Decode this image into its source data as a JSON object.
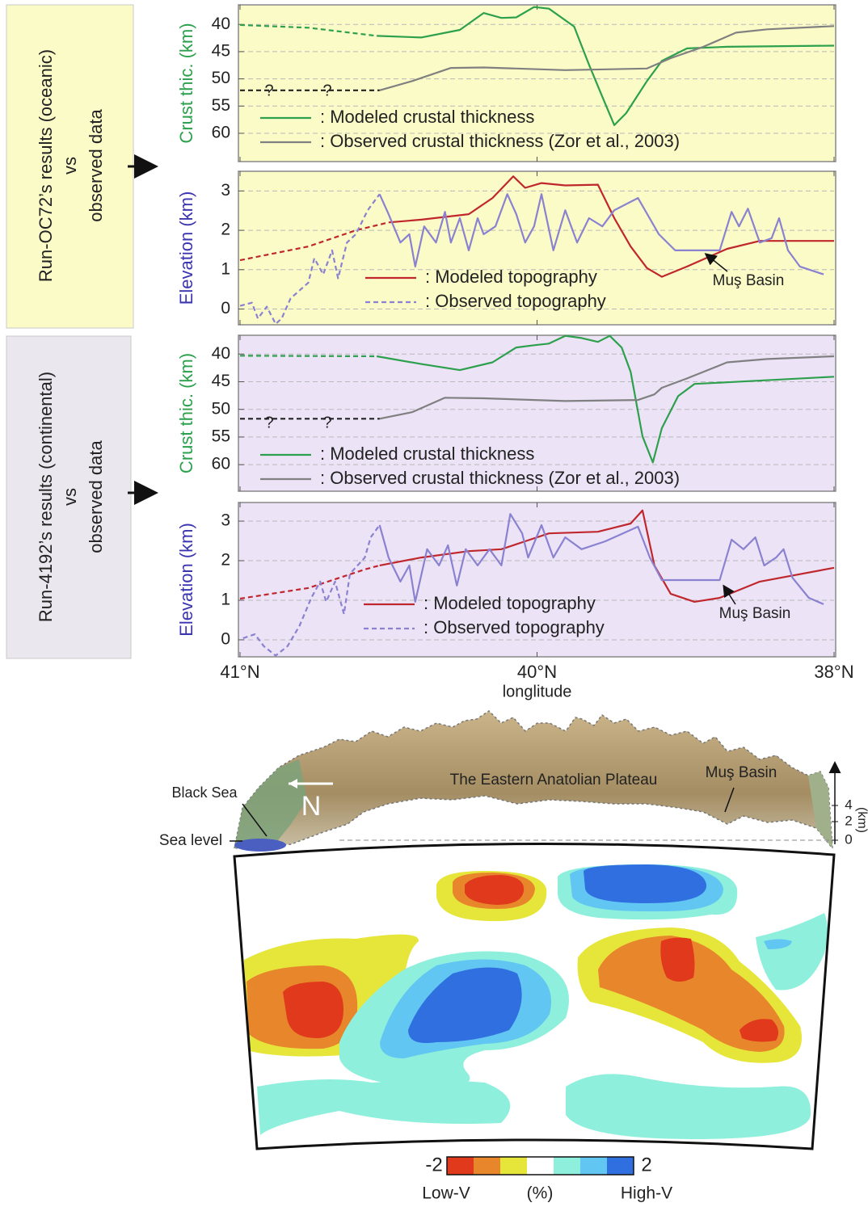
{
  "side_labels": [
    {
      "lines": [
        "Run-OC72’s results (oceanic)",
        "vs",
        "observed data"
      ]
    },
    {
      "lines": [
        "Run-4192’s results (continental)",
        "vs",
        "observed data"
      ]
    }
  ],
  "x_axis": {
    "xlim": [
      41,
      38
    ],
    "xticks": [
      {
        "value": 41,
        "label": "41°N"
      },
      {
        "value": 40,
        "label": "40°N"
      },
      {
        "value": 38,
        "label": "38°N"
      }
    ],
    "xlabel": "longlitude"
  },
  "chart_data": [
    {
      "type": "line",
      "ylabel": "Crust thic. (km)",
      "ylabel_color": "#2ca04c",
      "background": "#fbfbc8",
      "ylim": [
        65.2,
        36.4
      ],
      "yticks": [
        40,
        45,
        50,
        55,
        60
      ],
      "grid": true,
      "series": [
        {
          "name": ": Modeled crustal thickness",
          "color": "#2ca04c",
          "x": [
            40.54,
            40.39,
            40.26,
            40.18,
            40.12,
            40.07,
            40.01,
            39.92,
            39.75,
            39.65,
            39.56,
            39.48,
            39.4,
            39.26,
            39.16,
            38.99,
            38.72,
            38.0
          ],
          "values": [
            42.1,
            42.4,
            41.0,
            37.9,
            38.8,
            38.7,
            36.8,
            37.1,
            40.4,
            47.4,
            53.3,
            58.5,
            56.3,
            50.4,
            46.7,
            44.4,
            44.1,
            43.9
          ]
        },
        {
          "color": "#2ca04c",
          "dashed": true,
          "x": [
            41.0,
            40.77,
            40.54
          ],
          "values": [
            40.1,
            40.6,
            42.1
          ]
        },
        {
          "name": ": Observed crustal thickness (Zor et al., 2003)",
          "color": "#808080",
          "x": [
            40.53,
            40.42,
            40.29,
            40.18,
            39.81,
            39.26,
            39.1,
            38.88,
            38.66,
            38.45,
            38.0
          ],
          "values": [
            52.1,
            50.4,
            48.0,
            47.9,
            48.4,
            48.1,
            46.2,
            44.1,
            41.5,
            40.9,
            40.3
          ]
        },
        {
          "color": "#222222",
          "dashed": true,
          "x": [
            41.0,
            40.53
          ],
          "values": [
            52.1,
            52.1
          ]
        }
      ],
      "annotations": [
        "?",
        "?"
      ]
    },
    {
      "type": "line",
      "ylabel": "Elevation (km)",
      "ylabel_color": "#3b35b0",
      "background": "#fbfbc8",
      "ylim": [
        -0.4,
        3.5
      ],
      "yticks": [
        0,
        1,
        2,
        3
      ],
      "grid": true,
      "series": [
        {
          "name": ": Modeled topography",
          "color": "#c0272d",
          "x": [
            40.5,
            40.39,
            40.23,
            40.15,
            40.08,
            40.04,
            39.97,
            39.81,
            39.59,
            39.48,
            39.37,
            39.26,
            39.16,
            38.99,
            38.72,
            38.5,
            38.0
          ],
          "values": [
            2.2,
            2.27,
            2.41,
            2.82,
            3.37,
            3.08,
            3.2,
            3.14,
            3.16,
            2.31,
            1.59,
            1.04,
            0.82,
            1.08,
            1.53,
            1.73,
            1.73
          ]
        },
        {
          "color": "#c0272d",
          "dashed": true,
          "x": [
            41.0,
            40.77,
            40.61,
            40.5
          ],
          "values": [
            1.24,
            1.59,
            2.0,
            2.2
          ]
        },
        {
          "name": ": Observed topography",
          "color": "#8a82d0",
          "legend_dashed": true,
          "x": [
            40.53,
            40.5,
            40.46,
            40.43,
            40.41,
            40.38,
            40.34,
            40.31,
            40.29,
            40.26,
            40.23,
            40.2,
            40.18,
            40.14,
            40.1,
            40.07,
            40.04,
            40.01,
            39.97,
            39.89,
            39.81,
            39.73,
            39.65,
            39.56,
            39.48,
            39.32,
            39.18,
            39.07,
            38.99,
            38.77,
            38.69,
            38.64,
            38.58,
            38.5,
            38.42,
            38.37,
            38.31,
            38.23,
            38.07
          ],
          "values": [
            2.92,
            2.41,
            1.69,
            1.9,
            1.08,
            2.1,
            1.69,
            2.47,
            1.69,
            2.31,
            1.49,
            2.31,
            1.9,
            2.1,
            2.92,
            2.41,
            1.69,
            2.1,
            2.92,
            1.49,
            2.51,
            1.69,
            2.31,
            2.1,
            2.51,
            2.82,
            1.9,
            1.49,
            1.49,
            1.49,
            2.47,
            2.1,
            2.55,
            1.69,
            1.8,
            2.31,
            1.49,
            1.08,
            0.88
          ]
        },
        {
          "color": "#8a82d0",
          "dashed": true,
          "x": [
            41.0,
            40.96,
            40.94,
            40.91,
            40.88,
            40.86,
            40.83,
            40.77,
            40.75,
            40.72,
            40.69,
            40.67,
            40.64,
            40.61,
            40.57,
            40.54,
            40.53
          ],
          "values": [
            0.08,
            0.16,
            -0.24,
            0.06,
            -0.38,
            -0.24,
            0.27,
            0.67,
            1.29,
            0.88,
            1.49,
            0.78,
            1.69,
            1.9,
            2.51,
            2.82,
            2.92
          ]
        }
      ],
      "annotations": [
        "Muş Basin"
      ]
    },
    {
      "type": "line",
      "ylabel": "Crust thic. (km)",
      "ylabel_color": "#2ca04c",
      "background": "#ece3f7",
      "ylim": [
        64.8,
        36.6
      ],
      "yticks": [
        40,
        45,
        50,
        55,
        60
      ],
      "grid": true,
      "series": [
        {
          "name": ": Modeled crustal thickness",
          "color": "#2ca04c",
          "x": [
            40.54,
            40.39,
            40.26,
            40.15,
            40.07,
            40.01,
            39.92,
            39.81,
            39.7,
            39.59,
            39.51,
            39.43,
            39.37,
            39.29,
            39.22,
            39.16,
            39.05,
            38.94,
            38.72,
            38.0
          ],
          "values": [
            40.4,
            41.8,
            42.9,
            41.5,
            38.8,
            38.4,
            38.1,
            36.7,
            37.1,
            37.8,
            36.7,
            38.8,
            43.2,
            54.9,
            59.6,
            53.4,
            47.6,
            45.4,
            45.1,
            44.1
          ]
        },
        {
          "color": "#2ca04c",
          "dashed": true,
          "x": [
            41.0,
            40.54
          ],
          "values": [
            40.3,
            40.4
          ]
        },
        {
          "name": ": Observed crustal thickness (Zor et al., 2003)",
          "color": "#808080",
          "x": [
            40.53,
            40.42,
            40.31,
            40.18,
            39.81,
            39.32,
            39.21,
            39.16,
            38.99,
            38.72,
            38.45,
            38.0
          ],
          "values": [
            51.7,
            50.5,
            47.9,
            48.0,
            48.5,
            48.3,
            47.3,
            46.1,
            44.4,
            41.5,
            40.9,
            40.4
          ]
        },
        {
          "color": "#222222",
          "dashed": true,
          "x": [
            41.0,
            40.53
          ],
          "values": [
            51.7,
            51.7
          ]
        }
      ],
      "annotations": [
        "?",
        "?"
      ]
    },
    {
      "type": "line",
      "ylabel": "Elevation (km)",
      "ylabel_color": "#3b35b0",
      "background": "#ece3f7",
      "ylim": [
        -0.43,
        3.47
      ],
      "yticks": [
        0,
        1,
        2,
        3
      ],
      "grid": true,
      "series": [
        {
          "name": ": Modeled topography",
          "color": "#c0272d",
          "x": [
            40.53,
            40.39,
            40.23,
            40.12,
            40.04,
            39.92,
            39.59,
            39.37,
            39.29,
            39.21,
            39.1,
            38.94,
            38.77,
            38.5,
            38.0
          ],
          "values": [
            1.88,
            2.08,
            2.24,
            2.29,
            2.49,
            2.69,
            2.73,
            2.94,
            3.27,
            1.88,
            1.16,
            0.96,
            1.06,
            1.47,
            1.82
          ]
        },
        {
          "color": "#c0272d",
          "dashed": true,
          "x": [
            41.0,
            40.77,
            40.58,
            40.53
          ],
          "values": [
            1.04,
            1.31,
            1.78,
            1.88
          ]
        },
        {
          "name": ": Observed topography",
          "color": "#8a82d0",
          "legend_dashed": true,
          "x": [
            40.53,
            40.5,
            40.46,
            40.43,
            40.41,
            40.37,
            40.33,
            40.3,
            40.27,
            40.24,
            40.2,
            40.16,
            40.12,
            40.09,
            40.05,
            40.03,
            39.97,
            39.89,
            39.81,
            39.7,
            39.54,
            39.32,
            39.24,
            39.16,
            38.99,
            38.77,
            38.69,
            38.61,
            38.53,
            38.47,
            38.39,
            38.34,
            38.28,
            38.17,
            38.07
          ],
          "values": [
            2.9,
            2.08,
            1.47,
            1.88,
            0.96,
            2.29,
            1.88,
            2.39,
            1.37,
            2.29,
            1.88,
            2.29,
            1.88,
            3.18,
            2.69,
            2.08,
            2.9,
            2.08,
            2.59,
            2.29,
            2.49,
            2.86,
            2.08,
            1.51,
            1.51,
            1.51,
            2.53,
            2.29,
            2.59,
            1.88,
            2.08,
            2.29,
            1.57,
            1.06,
            0.9
          ]
        },
        {
          "color": "#8a82d0",
          "dashed": true,
          "x": [
            40.99,
            40.95,
            40.92,
            40.88,
            40.84,
            40.8,
            40.76,
            40.73,
            40.71,
            40.68,
            40.65,
            40.63,
            40.58,
            40.56,
            40.53
          ],
          "values": [
            0.04,
            0.14,
            -0.16,
            -0.4,
            -0.16,
            0.35,
            1.06,
            1.47,
            0.96,
            1.47,
            0.65,
            1.67,
            2.08,
            2.59,
            2.9
          ]
        }
      ],
      "annotations": [
        "Muş Basin"
      ]
    }
  ],
  "section": {
    "labels": {
      "plateau": "The Eastern Anatolian Plateau",
      "basin": "Muş Basin",
      "sea": "Black Sea",
      "sea_level": "Sea level",
      "north": "N"
    },
    "elevation_scale": {
      "ticks": [
        4,
        2,
        0
      ],
      "unit": "(km)"
    },
    "colorbar": {
      "ticks": [
        -2,
        2
      ],
      "colors": [
        "#e0391c",
        "#e8862c",
        "#e6e63a",
        "#ffffff",
        "#8ef0dc",
        "#62c6f2",
        "#2f6fe0"
      ],
      "unit": "(%)",
      "low_label": "Low-V",
      "high_label": "High-V"
    }
  }
}
